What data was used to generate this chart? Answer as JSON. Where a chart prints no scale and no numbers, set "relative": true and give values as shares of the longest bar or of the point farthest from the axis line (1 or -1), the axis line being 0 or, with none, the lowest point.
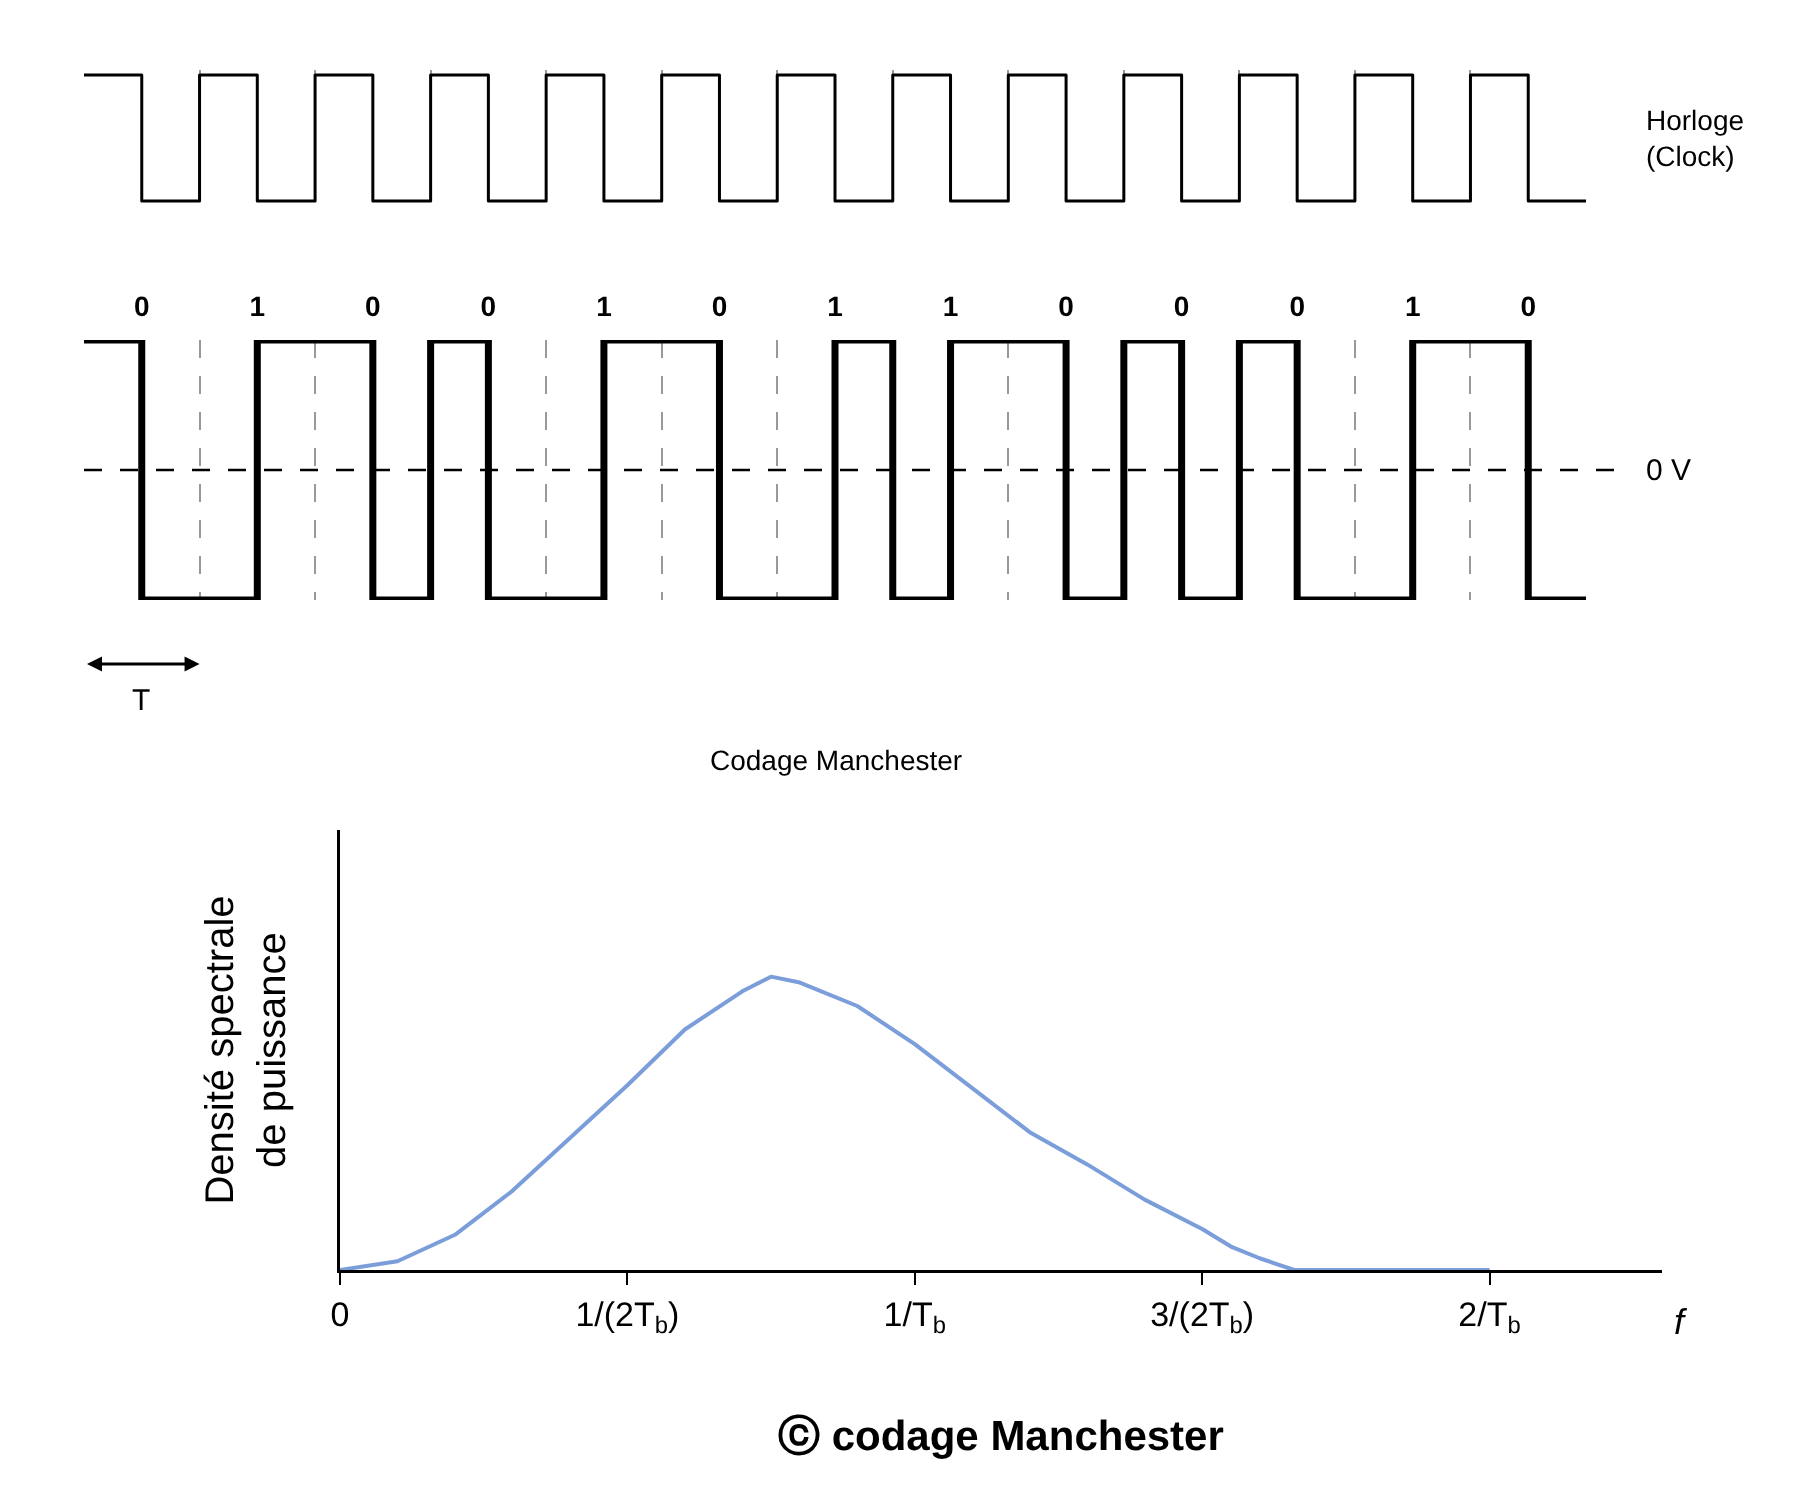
{
  "chart_data": [
    {
      "type": "step",
      "relative": true,
      "categories": [
        null,
        null,
        null,
        null,
        null,
        null,
        null,
        null,
        null,
        null,
        null,
        null,
        null,
        null,
        null,
        null,
        null,
        null,
        null,
        null,
        null,
        null,
        null,
        null,
        null,
        null,
        null
      ],
      "series": [
        {
          "name": "Horloge\n(Clock)",
          "color": "#000000",
          "values": [
            1,
            0,
            1,
            0,
            1,
            0,
            1,
            0,
            1,
            0,
            1,
            0,
            1,
            0,
            1,
            0,
            1,
            0,
            1,
            0,
            1,
            0,
            1,
            0,
            1,
            0,
            0
          ]
        }
      ],
      "grid": "x"
    },
    {
      "type": "step",
      "relative": true,
      "categories": [
        null,
        "0",
        null,
        "1",
        null,
        "0",
        null,
        "0",
        null,
        "1",
        null,
        "0",
        null,
        "1",
        null,
        "1",
        null,
        "0",
        null,
        "0",
        null,
        "0",
        null,
        "1",
        null,
        "0",
        null
      ],
      "series": [
        {
          "color": "#000000",
          "values": [
            1,
            0,
            0,
            1,
            1,
            0,
            1,
            0,
            0,
            1,
            1,
            0,
            0,
            1,
            0,
            1,
            1,
            0,
            1,
            0,
            1,
            0,
            0,
            1,
            1,
            0,
            0
          ]
        }
      ],
      "ref_lines": [
        {
          "axis": "y",
          "value": 0.5,
          "label": "0 V",
          "line_style": "dashed"
        }
      ],
      "xlabel": "T",
      "annotations": [
        "Codage Manchester"
      ],
      "grid": "x"
    },
    {
      "type": "line",
      "relative": true,
      "x": [
        0,
        0.1,
        0.2,
        0.3,
        0.4,
        0.5,
        0.6,
        0.7,
        0.75,
        0.8,
        0.9,
        1.0,
        1.1,
        1.2,
        1.3,
        1.4,
        1.5,
        1.55,
        1.6,
        1.66,
        1.8,
        2.0
      ],
      "values": [
        0,
        0.03,
        0.12,
        0.27,
        0.45,
        0.63,
        0.82,
        0.95,
        1,
        0.98,
        0.9,
        0.77,
        0.62,
        0.47,
        0.36,
        0.24,
        0.14,
        0.08,
        0.04,
        0,
        0,
        0
      ],
      "color": "#7b9edb",
      "xlabel": "f",
      "ylabel": "Densité spectrale\nde puissance",
      "xlim": [
        0,
        2.3
      ],
      "xticks": [
        0,
        {
          "value": 0.5,
          "label": "1/(2T$_{b}$)"
        },
        {
          "value": 1,
          "label": "1/T$_{b}$"
        },
        {
          "value": 1.5,
          "label": "3/(2T$_{b}$)"
        },
        {
          "value": 2,
          "label": "2/T$_{b}$"
        }
      ],
      "annotations": [
        "ⓒ codage Manchester"
      ],
      "grid": false
    }
  ]
}
